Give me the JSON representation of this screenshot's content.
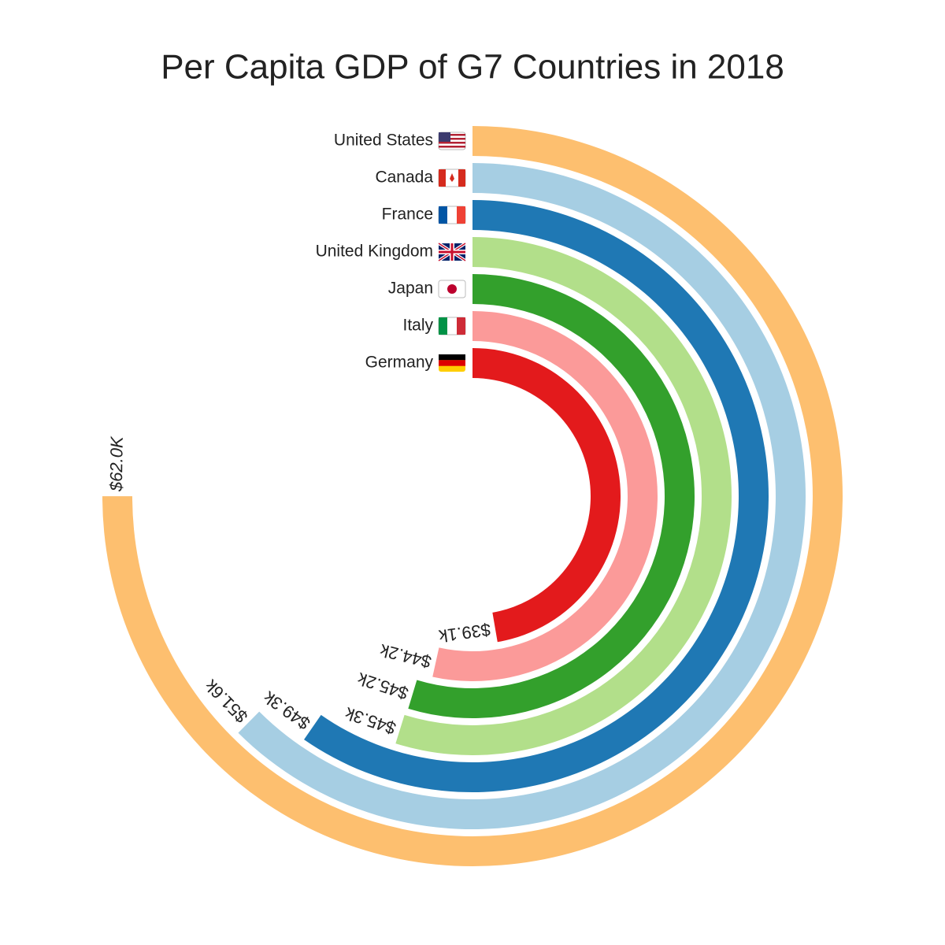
{
  "chart_data": {
    "type": "radial_bar",
    "title": "Per Capita GDP of G7 Countries in 2018",
    "categories": [
      "United States",
      "Canada",
      "France",
      "United Kingdom",
      "Japan",
      "Italy",
      "Germany"
    ],
    "values": [
      62.0,
      51.6,
      49.3,
      45.3,
      45.2,
      44.2,
      39.1
    ],
    "value_labels": [
      "$62.0K",
      "$51.6k",
      "$49.3k",
      "$45.3k",
      "$45.2k",
      "$44.2k",
      "$39.1k"
    ],
    "colors": [
      "#fdbf6f",
      "#a6cee3",
      "#1f78b4",
      "#b2df8a",
      "#33a02c",
      "#fb9a99",
      "#e31a1c"
    ],
    "theta_lim": [
      0,
      82.67
    ]
  }
}
